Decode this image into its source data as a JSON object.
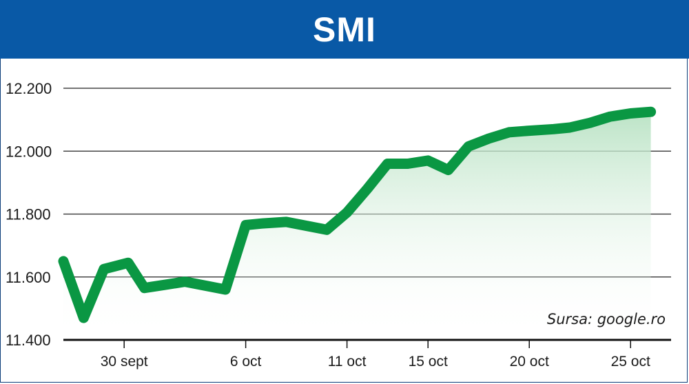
{
  "chart_data": {
    "type": "area",
    "title": "SMI",
    "source": "Sursa: google.ro",
    "y_ticks": [
      "12.200",
      "12.000",
      "11.800",
      "11.600",
      "11.400"
    ],
    "y_tick_values": [
      12200,
      12000,
      11800,
      11600,
      11400
    ],
    "ylim": [
      11400,
      12200
    ],
    "x_ticks": [
      "30 sept",
      "6 oct",
      "11 oct",
      "15 oct",
      "20 oct",
      "25 oct"
    ],
    "x_tick_days": [
      3,
      9,
      14,
      18,
      23,
      28
    ],
    "x_range_days": [
      0,
      30
    ],
    "grid": true,
    "series": [
      {
        "x_days": [
          0,
          1,
          2,
          3.2,
          4,
          5,
          6,
          8,
          9,
          9.8,
          11,
          13,
          14,
          15,
          16,
          17,
          18,
          19,
          20,
          21,
          22,
          23,
          24.2,
          25,
          26,
          27,
          28,
          29
        ],
        "values": [
          11650,
          11470,
          11625,
          11645,
          11565,
          11575,
          11585,
          11560,
          11765,
          11770,
          11775,
          11750,
          11805,
          11880,
          11960,
          11960,
          11970,
          11940,
          12015,
          12040,
          12060,
          12065,
          12070,
          12075,
          12090,
          12110,
          12120,
          12125
        ]
      }
    ],
    "colors": {
      "header": "#0959a6",
      "line": "#0a9743",
      "area_top": "#b8e2c3",
      "area_bottom": "#ffffff",
      "grid": "#222222"
    }
  }
}
